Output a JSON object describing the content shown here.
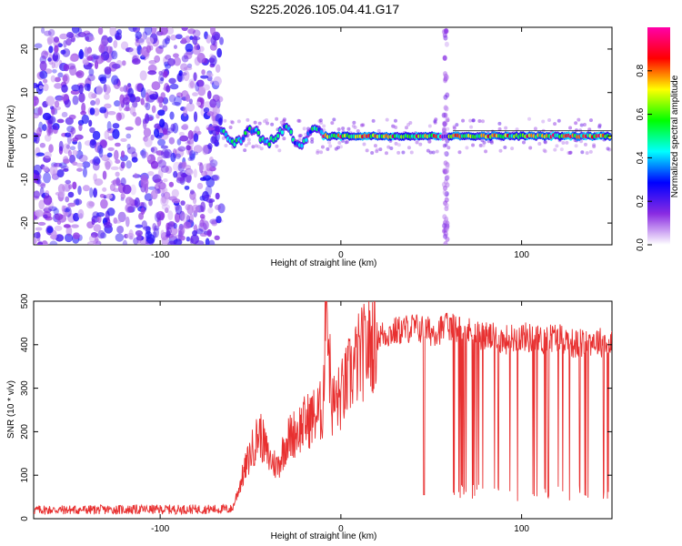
{
  "title": "S225.2026.105.04.41.G17",
  "chart_data": [
    {
      "type": "heatmap",
      "name": "spectrogram",
      "xlabel": "Height of straight line (km)",
      "ylabel": "Frequency (Hz)",
      "xlim": [
        -170,
        150
      ],
      "ylim": [
        -25,
        25
      ],
      "xticks": [
        -100,
        0,
        100
      ],
      "yticks": [
        -20,
        -10,
        0,
        10,
        20
      ],
      "colorbar": {
        "label": "Normalized spectral amplitude",
        "range": [
          0,
          1
        ],
        "ticks": [
          0.0,
          0.2,
          0.4,
          0.6,
          0.8
        ],
        "colors": [
          "#ffffff",
          "#8a2be2",
          "#0000ff",
          "#00ffff",
          "#00ff00",
          "#ffff00",
          "#ff0000",
          "#ff00aa"
        ]
      },
      "features": [
        {
          "kind": "noise",
          "x_range": [
            -170,
            -66
          ],
          "y_range": [
            -25,
            25
          ],
          "amplitude": 0.15
        },
        {
          "kind": "signal",
          "x_range": [
            -66,
            150
          ],
          "frequency": 0,
          "amplitude": 0.8
        },
        {
          "kind": "interference",
          "x": 58,
          "y_range": [
            -25,
            25
          ],
          "amplitude": 0.12
        }
      ]
    },
    {
      "type": "line",
      "name": "snr",
      "xlabel": "Height of straight line (km)",
      "ylabel": "SNR (10 * v/v)",
      "xlim": [
        -170,
        150
      ],
      "ylim": [
        0,
        500
      ],
      "xticks": [
        -100,
        0,
        100
      ],
      "yticks": [
        0,
        100,
        200,
        300,
        400,
        500
      ],
      "color": "#e83030",
      "series": [
        {
          "name": "SNR",
          "x": [
            -170,
            -60,
            -55,
            -50,
            -45,
            -40,
            -35,
            -30,
            -20,
            -10,
            -8,
            -5,
            0,
            5,
            10,
            20,
            30,
            40,
            50,
            60,
            70,
            80,
            90,
            100,
            110,
            120,
            130,
            140,
            150
          ],
          "values": [
            20,
            22,
            90,
            150,
            200,
            140,
            120,
            180,
            220,
            250,
            500,
            260,
            280,
            330,
            370,
            420,
            430,
            440,
            430,
            440,
            430,
            420,
            410,
            420,
            410,
            420,
            400,
            410,
            400
          ]
        }
      ],
      "dropouts": [
        [
          58,
          150
        ]
      ]
    }
  ]
}
